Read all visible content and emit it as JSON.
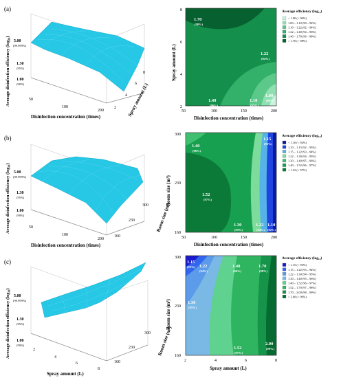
{
  "figure": {
    "panel_labels": [
      "(a)",
      "(b)",
      "(c)"
    ]
  },
  "chart_data": [
    {
      "type": "surface3d",
      "panel": "(a)",
      "zlabel": "Average disinfection efficiency (log₁₀)",
      "xlabel": "Disinfection concentration (times)",
      "ylabel": "Spray amount (L)",
      "z_ticks": [
        {
          "value": "5.00",
          "note": "(99.999%)"
        },
        {
          "value": "1.30",
          "note": "(95%)"
        },
        {
          "value": "1.00",
          "note": "(90%)"
        }
      ],
      "x_ticks": [
        "50",
        "100",
        "200"
      ],
      "y_ticks": [
        "2",
        "4",
        "6",
        "8"
      ],
      "surface_color": "#27C7E6"
    },
    {
      "type": "contour",
      "panel": "(a)",
      "xlabel": "Disinfection concentration (times)",
      "ylabel": "Spray amount (L)",
      "x_ticks": [
        "50",
        "100",
        "150",
        "200"
      ],
      "y_ticks": [
        "2",
        "4",
        "6",
        "8"
      ],
      "xlim": [
        50,
        200
      ],
      "ylim": [
        2,
        8
      ],
      "legend_title": "Average efficiency (log₁₀)",
      "legend": [
        {
          "label": "< 1.00  (< 90%)",
          "color": "#c8f2dc"
        },
        {
          "label": "1.00 – 1.10  (90 – 92%)",
          "color": "#8fe0b0"
        },
        {
          "label": "1.10 – 1.22  (92 – 94%)",
          "color": "#5cc98a"
        },
        {
          "label": "1.22 – 1.40  (94 – 96%)",
          "color": "#33b06a"
        },
        {
          "label": "1.40 – 1.70  (96 – 98%)",
          "color": "#14904c"
        },
        {
          "label": "> 1.70  (> 98%)",
          "color": "#07602f"
        }
      ],
      "annotations": [
        {
          "value": "1.70",
          "pct": "(98%)",
          "x": 65,
          "y": 7.3
        },
        {
          "value": "1.22",
          "pct": "(94%)",
          "x": 170,
          "y": 5.1
        },
        {
          "value": "1.40",
          "pct": "(96%)",
          "x": 100,
          "y": 2.5
        },
        {
          "value": "1.10",
          "pct": "(92%)",
          "x": 165,
          "y": 2.5
        },
        {
          "value": "1.00",
          "pct": "(90%)",
          "x": 192,
          "y": 2.9
        }
      ]
    },
    {
      "type": "surface3d",
      "panel": "(b)",
      "zlabel": "Average disinfection efficiency (log₁₀)",
      "xlabel": "Disinfection concentration (times)",
      "ylabel": "Room size (m³)",
      "z_ticks": [
        {
          "value": "5.00",
          "note": "(99.999%)"
        },
        {
          "value": "1.30",
          "note": "(95%)"
        },
        {
          "value": "1.00",
          "note": "(90%)"
        }
      ],
      "x_ticks": [
        "50",
        "100",
        "200"
      ],
      "y_ticks": [
        "160",
        "230",
        "300"
      ],
      "surface_color": "#27C7E6"
    },
    {
      "type": "contour",
      "panel": "(b)",
      "xlabel": "Disinfection concentration (times)",
      "ylabel": "Room size (m³)",
      "x_ticks": [
        "50",
        "100",
        "150",
        "200"
      ],
      "y_ticks": [
        "160",
        "230",
        "300"
      ],
      "xlim": [
        50,
        200
      ],
      "ylim": [
        160,
        300
      ],
      "legend_title": "Average efficiency (log₁₀)",
      "legend": [
        {
          "label": "< 1.10  (< 92%)",
          "color": "#0a1aa0"
        },
        {
          "label": "1.10 – 1.15  (92 – 93%)",
          "color": "#1f44e0"
        },
        {
          "label": "1.15 – 1.22  (93 – 94%)",
          "color": "#56b3e8"
        },
        {
          "label": "1.22 – 1.30  (94 – 95%)",
          "color": "#7ddc9c"
        },
        {
          "label": "1.30 – 1.40  (95 – 96%)",
          "color": "#3fc070"
        },
        {
          "label": "1.40 – 1.52  (96 – 97%)",
          "color": "#17a04f"
        },
        {
          "label": "> 1.52  (> 97%)",
          "color": "#0b7a38"
        }
      ],
      "annotations": [
        {
          "value": "1.40",
          "pct": "(96%)",
          "x": 63,
          "y": 283
        },
        {
          "value": "1.15",
          "pct": "(93%)",
          "x": 185,
          "y": 290
        },
        {
          "value": "1.52",
          "pct": "(97%)",
          "x": 72,
          "y": 200
        },
        {
          "value": "1.30",
          "pct": "(95%)",
          "x": 133,
          "y": 165
        },
        {
          "value": "1.22",
          "pct": "(94%)",
          "x": 174,
          "y": 165
        },
        {
          "value": "1.10",
          "pct": "(92%)",
          "x": 192,
          "y": 165
        }
      ]
    },
    {
      "type": "surface3d",
      "panel": "(c)",
      "zlabel": "Average disinfection efficiency (log₁₀)",
      "xlabel": "Spray amount (L)",
      "ylabel": "Room size (m³)",
      "z_ticks": [
        {
          "value": "5.00",
          "note": "(99.999%)"
        },
        {
          "value": "1.30",
          "note": "(95%)"
        },
        {
          "value": "1.00",
          "note": "(90%)"
        }
      ],
      "x_ticks": [
        "2",
        "4",
        "6",
        "8"
      ],
      "y_ticks": [
        "160",
        "230",
        "300"
      ],
      "surface_color": "#27C7E6"
    },
    {
      "type": "contour",
      "panel": "(c)",
      "xlabel": "Spray amount (L)",
      "ylabel": "Room size (m³)",
      "x_ticks": [
        "2",
        "4",
        "6",
        "8"
      ],
      "y_ticks": [
        "160",
        "230",
        "300"
      ],
      "xlim": [
        2,
        8
      ],
      "ylim": [
        160,
        300
      ],
      "legend_title": "Average efficiency (log₁₀)",
      "legend": [
        {
          "label": "< 1.15  (< 93%)",
          "color": "#1a1acc"
        },
        {
          "label": "1.15 – 1.22  (93 – 94%)",
          "color": "#3366ee"
        },
        {
          "label": "1.22 – 1.30  (94 – 95%)",
          "color": "#5b9bea"
        },
        {
          "label": "1.30 – 1.40  (95 – 96%)",
          "color": "#7ab8e6"
        },
        {
          "label": "1.40 – 1.52  (96 – 97%)",
          "color": "#5fd290"
        },
        {
          "label": "1.52 – 1.70  (97 – 98%)",
          "color": "#2fb560"
        },
        {
          "label": "1.70 – 2.00  (98 – 99%)",
          "color": "#16944a"
        },
        {
          "label": "> 2.00  (> 99%)",
          "color": "#066b31"
        }
      ],
      "annotations": [
        {
          "value": "1.15",
          "pct": "(93%)",
          "x": 2.4,
          "y": 290
        },
        {
          "value": "1.22",
          "pct": "(94%)",
          "x": 3.2,
          "y": 285
        },
        {
          "value": "1.40",
          "pct": "(96%)",
          "x": 5.0,
          "y": 282
        },
        {
          "value": "1.70",
          "pct": "(98%)",
          "x": 6.7,
          "y": 282
        },
        {
          "value": "1.30",
          "pct": "(95%)",
          "x": 2.6,
          "y": 228
        },
        {
          "value": "1.52",
          "pct": "(97%)",
          "x": 5.3,
          "y": 168
        },
        {
          "value": "2.00",
          "pct": "(99%)",
          "x": 7.5,
          "y": 172
        }
      ]
    }
  ]
}
